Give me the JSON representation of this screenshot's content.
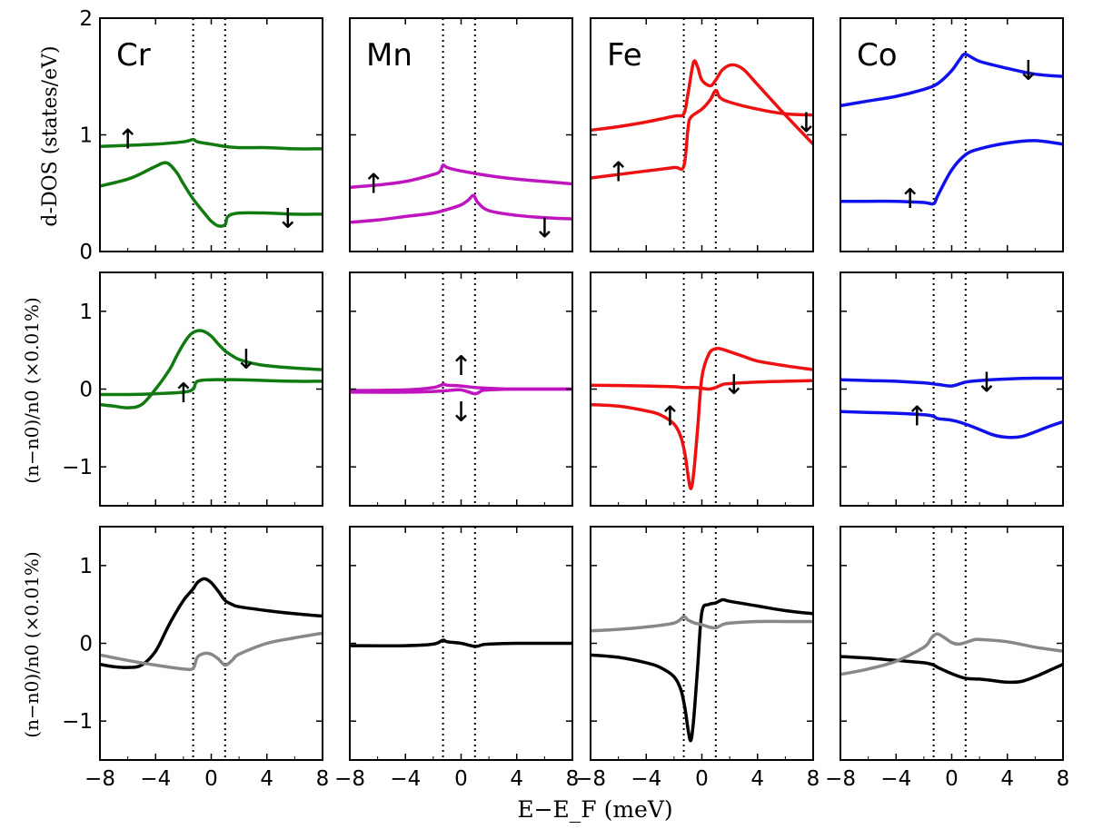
{
  "figure": {
    "xlabel": "E−E_F (meV)",
    "ylabel_row1": "d-DOS (states/eV)",
    "ylabel_row23": "(n−n0)/n0 (×0.01%)"
  },
  "colors": {
    "Cr": "#117a11",
    "Mn": "#bf15bf",
    "Fe": "#ee1111",
    "Co": "#1111ee",
    "black": "#000000",
    "gray": "#888888"
  },
  "chart_data": [
    {
      "type": "line",
      "row": "d-DOS",
      "xlim": [
        -8,
        8
      ],
      "ylim": [
        0,
        2
      ],
      "xticks": [
        "-8",
        "-4",
        "0",
        "4",
        "8"
      ],
      "yticks": [
        "0",
        "1",
        "2"
      ],
      "dotted_lines_x": [
        -1.3,
        1.0
      ],
      "panels": [
        {
          "element": "Cr",
          "series": [
            {
              "name": "↑",
              "color": "Cr",
              "x": [
                -8,
                -6,
                -4,
                -2,
                -1.3,
                -1,
                0,
                1,
                2,
                4,
                6,
                8
              ],
              "y": [
                0.9,
                0.91,
                0.92,
                0.94,
                0.96,
                0.94,
                0.92,
                0.9,
                0.89,
                0.89,
                0.88,
                0.88
              ]
            },
            {
              "name": "↓",
              "color": "Cr",
              "x": [
                -8,
                -6,
                -5,
                -4,
                -3.2,
                -2.5,
                -2,
                -1.3,
                -0.5,
                0,
                0.5,
                1,
                1.2,
                2,
                4,
                6,
                8
              ],
              "y": [
                0.56,
                0.62,
                0.67,
                0.73,
                0.76,
                0.68,
                0.58,
                0.45,
                0.33,
                0.26,
                0.22,
                0.23,
                0.3,
                0.33,
                0.33,
                0.32,
                0.32
              ]
            }
          ]
        },
        {
          "element": "Mn",
          "series": [
            {
              "name": "↑",
              "color": "Mn",
              "x": [
                -8,
                -6,
                -4,
                -2,
                -1.5,
                -1.3,
                -1,
                0,
                2,
                4,
                6,
                8
              ],
              "y": [
                0.55,
                0.57,
                0.6,
                0.66,
                0.69,
                0.74,
                0.72,
                0.69,
                0.65,
                0.62,
                0.6,
                0.58
              ]
            },
            {
              "name": "↓",
              "color": "Mn",
              "x": [
                -8,
                -6,
                -4,
                -2,
                -1,
                0,
                0.5,
                0.9,
                1.2,
                2,
                4,
                6,
                8
              ],
              "y": [
                0.25,
                0.27,
                0.3,
                0.33,
                0.36,
                0.4,
                0.44,
                0.48,
                0.42,
                0.35,
                0.31,
                0.29,
                0.28
              ]
            }
          ]
        },
        {
          "element": "Fe",
          "series": [
            {
              "name": "↑",
              "color": "Fe",
              "x": [
                -8,
                -6,
                -4,
                -2,
                -1.3,
                -1,
                -0.8,
                0,
                0.6,
                1,
                1.3,
                2,
                4,
                6,
                8
              ],
              "y": [
                0.63,
                0.66,
                0.69,
                0.72,
                0.73,
                1.05,
                1.15,
                1.22,
                1.3,
                1.38,
                1.32,
                1.28,
                1.22,
                1.18,
                1.17
              ]
            },
            {
              "name": "↓",
              "color": "Fe",
              "x": [
                -8,
                -6,
                -4,
                -2,
                -1.3,
                -1,
                -0.6,
                -0.3,
                0,
                0.6,
                1,
                1.5,
                2.2,
                3,
                4,
                6,
                8
              ],
              "y": [
                1.04,
                1.07,
                1.11,
                1.16,
                1.18,
                1.35,
                1.62,
                1.58,
                1.47,
                1.42,
                1.47,
                1.56,
                1.6,
                1.56,
                1.43,
                1.17,
                0.92
              ]
            }
          ]
        },
        {
          "element": "Co",
          "series": [
            {
              "name": "↓",
              "color": "Co",
              "x": [
                -8,
                -6,
                -4,
                -2,
                -1,
                0,
                0.6,
                1,
                2,
                4,
                6,
                8
              ],
              "y": [
                1.25,
                1.29,
                1.33,
                1.39,
                1.44,
                1.55,
                1.65,
                1.69,
                1.63,
                1.57,
                1.52,
                1.5
              ]
            },
            {
              "name": "↑",
              "color": "Co",
              "x": [
                -8,
                -6,
                -4,
                -2,
                -1.3,
                -1,
                0,
                1,
                2,
                4,
                6,
                8
              ],
              "y": [
                0.43,
                0.43,
                0.43,
                0.42,
                0.41,
                0.48,
                0.7,
                0.83,
                0.88,
                0.93,
                0.95,
                0.92
              ]
            }
          ]
        }
      ]
    },
    {
      "type": "line",
      "row": "spin-resolved (n−n0)/n0",
      "xlim": [
        -8,
        8
      ],
      "ylim": [
        -1.5,
        1.5
      ],
      "xticks": [
        "-8",
        "-4",
        "0",
        "4",
        "8"
      ],
      "yticks": [
        "−1",
        "0",
        "1"
      ],
      "dotted_lines_x": [
        -1.3,
        1.0
      ],
      "panels": [
        {
          "element": "Cr",
          "series": [
            {
              "name": "↑",
              "color": "Cr",
              "x": [
                -8,
                -6,
                -4,
                -2,
                -1.3,
                -1,
                0,
                1,
                2,
                4,
                6,
                8
              ],
              "y": [
                -0.07,
                -0.07,
                -0.06,
                -0.04,
                0.0,
                0.1,
                0.12,
                0.12,
                0.12,
                0.11,
                0.1,
                0.1
              ]
            },
            {
              "name": "↓",
              "color": "Cr",
              "x": [
                -8,
                -7,
                -6,
                -5,
                -4,
                -3,
                -2.5,
                -2,
                -1.5,
                -1,
                -0.5,
                0,
                0.5,
                1,
                1.5,
                2,
                3,
                4,
                6,
                8
              ],
              "y": [
                -0.2,
                -0.22,
                -0.24,
                -0.2,
                0.0,
                0.25,
                0.42,
                0.58,
                0.7,
                0.75,
                0.74,
                0.68,
                0.58,
                0.49,
                0.43,
                0.38,
                0.33,
                0.3,
                0.27,
                0.25
              ]
            }
          ]
        },
        {
          "element": "Mn",
          "series": [
            {
              "name": "↑",
              "color": "Mn",
              "x": [
                -8,
                -4,
                -2,
                -1.3,
                -1,
                0,
                1,
                2,
                4,
                8
              ],
              "y": [
                -0.02,
                -0.01,
                0.02,
                0.06,
                0.05,
                0.04,
                0.02,
                0.01,
                0.0,
                0.0
              ]
            },
            {
              "name": "↓",
              "color": "Mn",
              "x": [
                -8,
                -4,
                -2,
                -1,
                0,
                1,
                1.5,
                2,
                4,
                8
              ],
              "y": [
                -0.04,
                -0.04,
                -0.03,
                -0.02,
                -0.01,
                -0.06,
                -0.02,
                -0.01,
                0.0,
                0.0
              ]
            }
          ]
        },
        {
          "element": "Fe",
          "series": [
            {
              "name": "↑",
              "color": "Fe",
              "x": [
                -8,
                -6,
                -4,
                -3,
                -2,
                -1.5,
                -1.2,
                -1,
                -0.8,
                -0.6,
                -0.3,
                0,
                0.5,
                1,
                1.5,
                2,
                3,
                4,
                6,
                8
              ],
              "y": [
                -0.2,
                -0.22,
                -0.28,
                -0.33,
                -0.45,
                -0.62,
                -0.85,
                -1.1,
                -1.28,
                -1.1,
                -0.5,
                0.15,
                0.45,
                0.52,
                0.51,
                0.48,
                0.42,
                0.36,
                0.3,
                0.25
              ]
            },
            {
              "name": "↓",
              "color": "Fe",
              "x": [
                -8,
                -4,
                -2,
                -1.3,
                -0.5,
                0,
                0.5,
                1,
                1.5,
                2,
                4,
                6,
                8
              ],
              "y": [
                0.05,
                0.04,
                0.03,
                0.02,
                0.02,
                0.01,
                0.0,
                0.02,
                0.06,
                0.07,
                0.09,
                0.1,
                0.11
              ]
            }
          ]
        },
        {
          "element": "Co",
          "series": [
            {
              "name": "↓",
              "color": "Co",
              "x": [
                -8,
                -6,
                -4,
                -2,
                -1,
                0,
                1,
                2,
                4,
                6,
                8
              ],
              "y": [
                0.12,
                0.11,
                0.1,
                0.08,
                0.06,
                0.04,
                0.09,
                0.11,
                0.13,
                0.14,
                0.14
              ]
            },
            {
              "name": "↑",
              "color": "Co",
              "x": [
                -8,
                -6,
                -4,
                -2,
                -1.3,
                -1,
                0,
                1,
                2,
                3,
                4,
                5,
                6,
                7,
                8
              ],
              "y": [
                -0.29,
                -0.3,
                -0.31,
                -0.33,
                -0.35,
                -0.38,
                -0.4,
                -0.45,
                -0.52,
                -0.59,
                -0.62,
                -0.61,
                -0.55,
                -0.48,
                -0.42
              ]
            }
          ]
        }
      ]
    },
    {
      "type": "line",
      "row": "total (n−n0)/n0",
      "xlim": [
        -8,
        8
      ],
      "ylim": [
        -1.5,
        1.5
      ],
      "xticks": [
        "-8",
        "-4",
        "0",
        "4",
        "8"
      ],
      "yticks": [
        "−1",
        "0",
        "1"
      ],
      "dotted_lines_x": [
        -1.3,
        1.0
      ],
      "panels": [
        {
          "element": "Cr",
          "series": [
            {
              "color": "black",
              "x": [
                -8,
                -7,
                -6,
                -5,
                -4,
                -3,
                -2,
                -1.3,
                -1,
                -0.5,
                0,
                0.5,
                1,
                1.5,
                2,
                4,
                6,
                8
              ],
              "y": [
                -0.27,
                -0.3,
                -0.31,
                -0.28,
                -0.1,
                0.25,
                0.55,
                0.7,
                0.78,
                0.83,
                0.78,
                0.67,
                0.55,
                0.5,
                0.47,
                0.42,
                0.38,
                0.35
              ]
            },
            {
              "color": "gray",
              "x": [
                -8,
                -6,
                -4,
                -2,
                -1.3,
                -1,
                -0.5,
                0,
                0.5,
                1,
                1.5,
                2,
                4,
                6,
                8
              ],
              "y": [
                -0.15,
                -0.22,
                -0.28,
                -0.33,
                -0.32,
                -0.18,
                -0.13,
                -0.14,
                -0.2,
                -0.28,
                -0.22,
                -0.14,
                0.0,
                0.07,
                0.13
              ]
            }
          ]
        },
        {
          "element": "Mn",
          "series": [
            {
              "color": "black",
              "x": [
                -8,
                -4,
                -2,
                -1.3,
                -1,
                0,
                1,
                1.5,
                2,
                4,
                8
              ],
              "y": [
                -0.03,
                -0.03,
                -0.01,
                0.04,
                0.02,
                0.0,
                -0.04,
                -0.02,
                -0.01,
                0.0,
                0.0
              ]
            }
          ]
        },
        {
          "element": "Fe",
          "series": [
            {
              "color": "black",
              "x": [
                -8,
                -6,
                -4,
                -3,
                -2,
                -1.5,
                -1.2,
                -1,
                -0.8,
                -0.6,
                -0.3,
                0,
                0.5,
                1,
                1.5,
                2,
                4,
                6,
                8
              ],
              "y": [
                -0.15,
                -0.18,
                -0.25,
                -0.31,
                -0.43,
                -0.6,
                -0.85,
                -1.1,
                -1.25,
                -1.0,
                -0.3,
                0.4,
                0.5,
                0.52,
                0.56,
                0.54,
                0.48,
                0.42,
                0.38
              ]
            },
            {
              "color": "gray",
              "x": [
                -8,
                -6,
                -4,
                -2,
                -1.3,
                -1,
                -0.5,
                0,
                0.5,
                1,
                1.5,
                2,
                4,
                6,
                8
              ],
              "y": [
                0.16,
                0.18,
                0.21,
                0.26,
                0.34,
                0.3,
                0.26,
                0.24,
                0.21,
                0.2,
                0.24,
                0.26,
                0.28,
                0.28,
                0.28
              ]
            }
          ]
        },
        {
          "element": "Co",
          "series": [
            {
              "color": "black",
              "x": [
                -8,
                -6,
                -4,
                -2,
                -1.3,
                -1,
                0,
                1,
                2,
                3,
                4,
                5,
                6,
                7,
                8
              ],
              "y": [
                -0.17,
                -0.19,
                -0.22,
                -0.25,
                -0.28,
                -0.31,
                -0.39,
                -0.45,
                -0.46,
                -0.48,
                -0.5,
                -0.49,
                -0.43,
                -0.35,
                -0.27
              ]
            },
            {
              "color": "gray",
              "x": [
                -8,
                -6,
                -4,
                -2,
                -1.5,
                -1.3,
                -1,
                -0.5,
                0,
                0.5,
                1,
                1.5,
                2,
                4,
                6,
                8
              ],
              "y": [
                -0.4,
                -0.33,
                -0.23,
                -0.05,
                0.06,
                0.1,
                0.12,
                0.07,
                0.01,
                -0.01,
                0.01,
                0.04,
                0.05,
                0.02,
                -0.05,
                -0.1
              ]
            }
          ]
        }
      ]
    }
  ]
}
